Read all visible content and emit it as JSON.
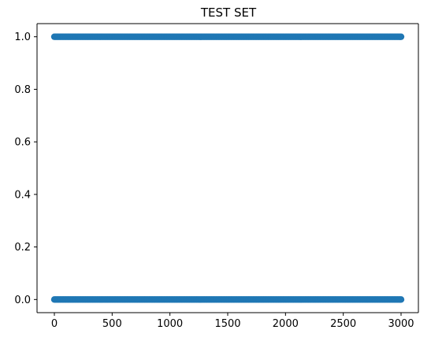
{
  "chart_data": {
    "type": "scatter",
    "title": "TEST SET",
    "xlabel": "",
    "ylabel": "",
    "xlim": [
      -150,
      3150
    ],
    "ylim": [
      -0.05,
      1.05
    ],
    "x_ticks": [
      0,
      500,
      1000,
      1500,
      2000,
      2500,
      3000
    ],
    "y_ticks": [
      0.0,
      0.2,
      0.4,
      0.6,
      0.8,
      1.0
    ],
    "x_tick_labels": [
      "0",
      "500",
      "1000",
      "1500",
      "2000",
      "2500",
      "3000"
    ],
    "y_tick_labels": [
      "0.0",
      "0.2",
      "0.4",
      "0.6",
      "0.8",
      "1.0"
    ],
    "grid": false,
    "legend": "none",
    "series": [
      {
        "x_range": [
          0,
          3000
        ],
        "levels": [
          0,
          1
        ],
        "color": "#1f77b4"
      }
    ]
  }
}
